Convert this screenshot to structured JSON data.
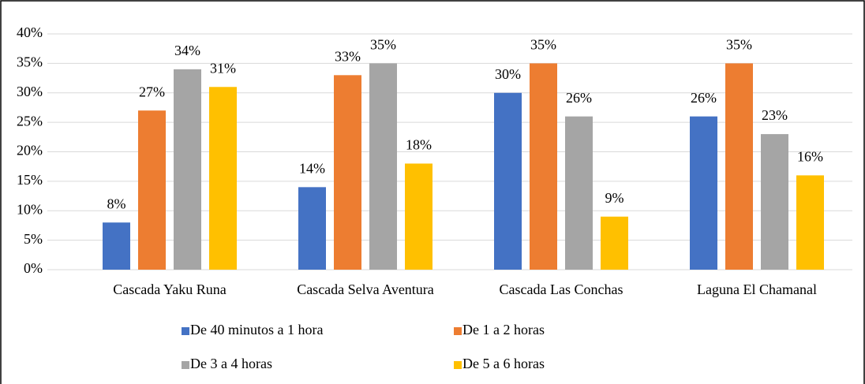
{
  "chart_data": {
    "type": "bar",
    "categories": [
      "Cascada Yaku Runa",
      "Cascada Selva Aventura",
      "Cascada Las Conchas",
      "Laguna El Chamanal"
    ],
    "series": [
      {
        "name": "De 40 minutos a 1 hora",
        "color": "#4472c4",
        "values": [
          8,
          14,
          30,
          26
        ],
        "value_labels": [
          "8%",
          "14%",
          "30%",
          "26%"
        ]
      },
      {
        "name": "De 1 a 2 horas",
        "color": "#ed7d31",
        "values": [
          27,
          33,
          35,
          35
        ],
        "value_labels": [
          "27%",
          "33%",
          "35%",
          "35%"
        ]
      },
      {
        "name": "De 3 a 4 horas",
        "color": "#a5a5a5",
        "values": [
          34,
          35,
          26,
          23
        ],
        "value_labels": [
          "34%",
          "35%",
          "26%",
          "23%"
        ]
      },
      {
        "name": "De 5 a 6 horas",
        "color": "#ffc000",
        "values": [
          31,
          18,
          9,
          16
        ],
        "value_labels": [
          "31%",
          "18%",
          "9%",
          "16%"
        ]
      }
    ],
    "ylim": [
      0,
      40
    ],
    "yticks": [
      {
        "value": 0,
        "label": "0%"
      },
      {
        "value": 5,
        "label": "5%"
      },
      {
        "value": 10,
        "label": "10%"
      },
      {
        "value": 15,
        "label": "15%"
      },
      {
        "value": 20,
        "label": "20%"
      },
      {
        "value": 25,
        "label": "25%"
      },
      {
        "value": 30,
        "label": "30%"
      },
      {
        "value": 35,
        "label": "35%"
      },
      {
        "value": 40,
        "label": "40%"
      }
    ],
    "grid": true
  }
}
